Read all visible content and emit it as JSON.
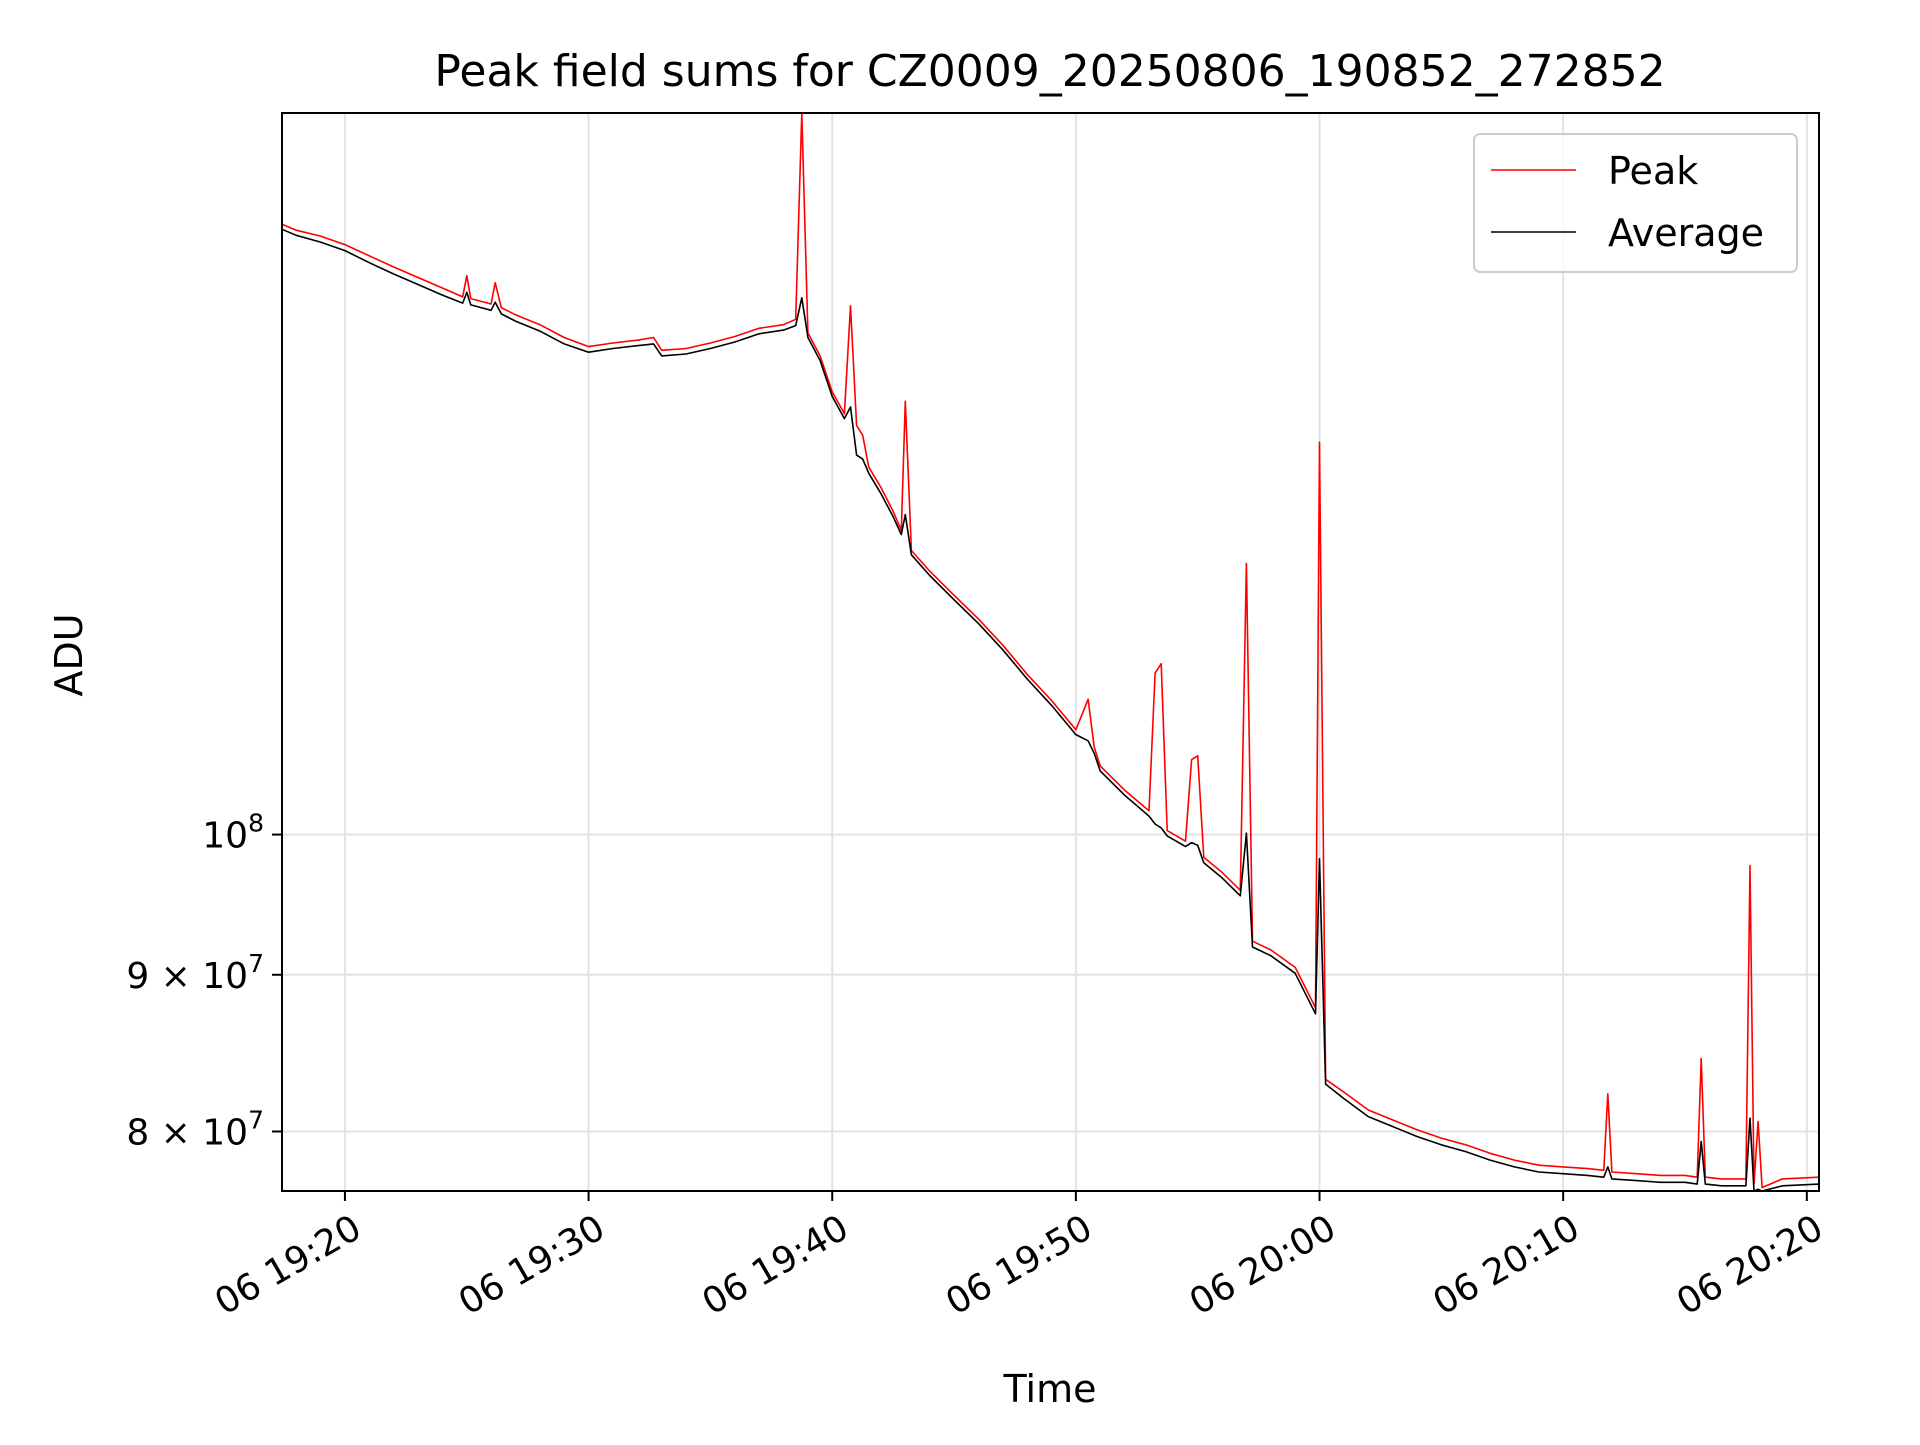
{
  "chart_data": {
    "type": "line",
    "title": "Peak field sums for CZ0009_20250806_190852_272852",
    "xlabel": "Time",
    "ylabel": "ADU",
    "y_scale": "log",
    "grid": true,
    "legend_position": "upper right",
    "xlim": [
      "2025-08-06 19:17:25",
      "2025-08-06 20:20:30"
    ],
    "ylim": [
      76500000.0,
      172000000.0
    ],
    "x_ticks": [
      {
        "time": "2025-08-06 19:20:00",
        "label": "06 19:20"
      },
      {
        "time": "2025-08-06 19:30:00",
        "label": "06 19:30"
      },
      {
        "time": "2025-08-06 19:40:00",
        "label": "06 19:40"
      },
      {
        "time": "2025-08-06 19:50:00",
        "label": "06 19:50"
      },
      {
        "time": "2025-08-06 20:00:00",
        "label": "06 20:00"
      },
      {
        "time": "2025-08-06 20:10:00",
        "label": "06 20:10"
      },
      {
        "time": "2025-08-06 20:20:00",
        "label": "06 20:20"
      }
    ],
    "y_ticks": [
      {
        "value": 80000000.0,
        "mantissa": "8",
        "base": "10",
        "exp": "7"
      },
      {
        "value": 90000000.0,
        "mantissa": "9",
        "base": "10",
        "exp": "7"
      },
      {
        "value": 100000000.0,
        "mantissa": "",
        "base": "10",
        "exp": "8"
      }
    ],
    "series": [
      {
        "name": "Peak",
        "color": "#ff0000",
        "points": [
          [
            "2025-08-06 19:17:25",
            158200000.0
          ],
          [
            "2025-08-06 19:18:00",
            157500000.0
          ],
          [
            "2025-08-06 19:19:00",
            156800000.0
          ],
          [
            "2025-08-06 19:20:00",
            155800000.0
          ],
          [
            "2025-08-06 19:21:00",
            154500000.0
          ],
          [
            "2025-08-06 19:22:00",
            153200000.0
          ],
          [
            "2025-08-06 19:23:00",
            152000000.0
          ],
          [
            "2025-08-06 19:24:00",
            150800000.0
          ],
          [
            "2025-08-06 19:24:50",
            149800000.0
          ],
          [
            "2025-08-06 19:25:00",
            152200000.0
          ],
          [
            "2025-08-06 19:25:10",
            149600000.0
          ],
          [
            "2025-08-06 19:26:00",
            149000000.0
          ],
          [
            "2025-08-06 19:26:10",
            151400000.0
          ],
          [
            "2025-08-06 19:26:25",
            148600000.0
          ],
          [
            "2025-08-06 19:27:00",
            147800000.0
          ],
          [
            "2025-08-06 19:28:00",
            146700000.0
          ],
          [
            "2025-08-06 19:29:00",
            145300000.0
          ],
          [
            "2025-08-06 19:30:00",
            144300000.0
          ],
          [
            "2025-08-06 19:31:00",
            144700000.0
          ],
          [
            "2025-08-06 19:32:00",
            145000000.0
          ],
          [
            "2025-08-06 19:32:40",
            145300000.0
          ],
          [
            "2025-08-06 19:33:00",
            143900000.0
          ],
          [
            "2025-08-06 19:34:00",
            144100000.0
          ],
          [
            "2025-08-06 19:35:00",
            144700000.0
          ],
          [
            "2025-08-06 19:36:00",
            145400000.0
          ],
          [
            "2025-08-06 19:37:00",
            146300000.0
          ],
          [
            "2025-08-06 19:38:00",
            146700000.0
          ],
          [
            "2025-08-06 19:38:30",
            147300000.0
          ],
          [
            "2025-08-06 19:38:45",
            172000000.0
          ],
          [
            "2025-08-06 19:39:00",
            145800000.0
          ],
          [
            "2025-08-06 19:39:30",
            143300000.0
          ],
          [
            "2025-08-06 19:40:00",
            139500000.0
          ],
          [
            "2025-08-06 19:40:30",
            137200000.0
          ],
          [
            "2025-08-06 19:40:45",
            148800000.0
          ],
          [
            "2025-08-06 19:41:00",
            136000000.0
          ],
          [
            "2025-08-06 19:41:15",
            135000000.0
          ],
          [
            "2025-08-06 19:41:30",
            131800000.0
          ],
          [
            "2025-08-06 19:42:00",
            129800000.0
          ],
          [
            "2025-08-06 19:42:30",
            127500000.0
          ],
          [
            "2025-08-06 19:42:50",
            125700000.0
          ],
          [
            "2025-08-06 19:43:00",
            138500000.0
          ],
          [
            "2025-08-06 19:43:15",
            123800000.0
          ],
          [
            "2025-08-06 19:44:00",
            121900000.0
          ],
          [
            "2025-08-06 19:45:00",
            119700000.0
          ],
          [
            "2025-08-06 19:46:00",
            117600000.0
          ],
          [
            "2025-08-06 19:47:00",
            115300000.0
          ],
          [
            "2025-08-06 19:48:00",
            112800000.0
          ],
          [
            "2025-08-06 19:49:00",
            110600000.0
          ],
          [
            "2025-08-06 19:50:00",
            108200000.0
          ],
          [
            "2025-08-06 19:50:30",
            110700000.0
          ],
          [
            "2025-08-06 19:50:45",
            106800000.0
          ],
          [
            "2025-08-06 19:51:00",
            105300000.0
          ],
          [
            "2025-08-06 19:52:00",
            103400000.0
          ],
          [
            "2025-08-06 19:53:00",
            101800000.0
          ],
          [
            "2025-08-06 19:53:15",
            112900000.0
          ],
          [
            "2025-08-06 19:53:30",
            113700000.0
          ],
          [
            "2025-08-06 19:53:45",
            100300000.0
          ],
          [
            "2025-08-06 19:54:30",
            99500000.0
          ],
          [
            "2025-08-06 19:54:45",
            105800000.0
          ],
          [
            "2025-08-06 19:55:00",
            106100000.0
          ],
          [
            "2025-08-06 19:55:15",
            98300000.0
          ],
          [
            "2025-08-06 19:56:00",
            97200000.0
          ],
          [
            "2025-08-06 19:56:45",
            95900000.0
          ],
          [
            "2025-08-06 19:57:00",
            122600000.0
          ],
          [
            "2025-08-06 19:57:15",
            92300000.0
          ],
          [
            "2025-08-06 19:58:00",
            91700000.0
          ],
          [
            "2025-08-06 19:59:00",
            90500000.0
          ],
          [
            "2025-08-06 19:59:50",
            87800000.0
          ],
          [
            "2025-08-06 20:00:00",
            134300000.0
          ],
          [
            "2025-08-06 20:00:15",
            83200000.0
          ],
          [
            "2025-08-06 20:01:00",
            82400000.0
          ],
          [
            "2025-08-06 20:02:00",
            81300000.0
          ],
          [
            "2025-08-06 20:03:00",
            80700000.0
          ],
          [
            "2025-08-06 20:04:00",
            80100000.0
          ],
          [
            "2025-08-06 20:05:00",
            79600000.0
          ],
          [
            "2025-08-06 20:06:00",
            79200000.0
          ],
          [
            "2025-08-06 20:07:00",
            78700000.0
          ],
          [
            "2025-08-06 20:08:00",
            78300000.0
          ],
          [
            "2025-08-06 20:09:00",
            78000000.0
          ],
          [
            "2025-08-06 20:10:00",
            77900000.0
          ],
          [
            "2025-08-06 20:11:00",
            77800000.0
          ],
          [
            "2025-08-06 20:11:40",
            77700000.0
          ],
          [
            "2025-08-06 20:11:50",
            82300000.0
          ],
          [
            "2025-08-06 20:12:00",
            77600000.0
          ],
          [
            "2025-08-06 20:13:00",
            77500000.0
          ],
          [
            "2025-08-06 20:14:00",
            77400000.0
          ],
          [
            "2025-08-06 20:15:00",
            77400000.0
          ],
          [
            "2025-08-06 20:15:30",
            77300000.0
          ],
          [
            "2025-08-06 20:15:40",
            84500000.0
          ],
          [
            "2025-08-06 20:15:50",
            77300000.0
          ],
          [
            "2025-08-06 20:16:30",
            77200000.0
          ],
          [
            "2025-08-06 20:17:00",
            77200000.0
          ],
          [
            "2025-08-06 20:17:30",
            77200000.0
          ],
          [
            "2025-08-06 20:17:40",
            97700000.0
          ],
          [
            "2025-08-06 20:17:50",
            76900000.0
          ],
          [
            "2025-08-06 20:18:00",
            80600000.0
          ],
          [
            "2025-08-06 20:18:10",
            76700000.0
          ],
          [
            "2025-08-06 20:19:00",
            77200000.0
          ],
          [
            "2025-08-06 20:20:30",
            77300000.0
          ]
        ]
      },
      {
        "name": "Average",
        "color": "#000000",
        "points": [
          [
            "2025-08-06 19:17:25",
            157600000.0
          ],
          [
            "2025-08-06 19:18:00",
            156900000.0
          ],
          [
            "2025-08-06 19:19:00",
            156100000.0
          ],
          [
            "2025-08-06 19:20:00",
            155100000.0
          ],
          [
            "2025-08-06 19:21:00",
            153700000.0
          ],
          [
            "2025-08-06 19:22:00",
            152400000.0
          ],
          [
            "2025-08-06 19:23:00",
            151200000.0
          ],
          [
            "2025-08-06 19:24:00",
            150000000.0
          ],
          [
            "2025-08-06 19:24:50",
            149100000.0
          ],
          [
            "2025-08-06 19:25:00",
            150300000.0
          ],
          [
            "2025-08-06 19:25:10",
            148900000.0
          ],
          [
            "2025-08-06 19:26:00",
            148300000.0
          ],
          [
            "2025-08-06 19:26:10",
            149200000.0
          ],
          [
            "2025-08-06 19:26:25",
            147900000.0
          ],
          [
            "2025-08-06 19:27:00",
            147100000.0
          ],
          [
            "2025-08-06 19:28:00",
            146000000.0
          ],
          [
            "2025-08-06 19:29:00",
            144600000.0
          ],
          [
            "2025-08-06 19:30:00",
            143700000.0
          ],
          [
            "2025-08-06 19:31:00",
            144100000.0
          ],
          [
            "2025-08-06 19:32:00",
            144400000.0
          ],
          [
            "2025-08-06 19:32:40",
            144600000.0
          ],
          [
            "2025-08-06 19:33:00",
            143300000.0
          ],
          [
            "2025-08-06 19:34:00",
            143500000.0
          ],
          [
            "2025-08-06 19:35:00",
            144100000.0
          ],
          [
            "2025-08-06 19:36:00",
            144800000.0
          ],
          [
            "2025-08-06 19:37:00",
            145700000.0
          ],
          [
            "2025-08-06 19:38:00",
            146100000.0
          ],
          [
            "2025-08-06 19:38:30",
            146600000.0
          ],
          [
            "2025-08-06 19:38:45",
            149700000.0
          ],
          [
            "2025-08-06 19:39:00",
            145300000.0
          ],
          [
            "2025-08-06 19:39:30",
            142800000.0
          ],
          [
            "2025-08-06 19:40:00",
            139000000.0
          ],
          [
            "2025-08-06 19:40:30",
            136700000.0
          ],
          [
            "2025-08-06 19:40:45",
            137900000.0
          ],
          [
            "2025-08-06 19:41:00",
            133000000.0
          ],
          [
            "2025-08-06 19:41:15",
            132600000.0
          ],
          [
            "2025-08-06 19:41:30",
            131200000.0
          ],
          [
            "2025-08-06 19:42:00",
            129200000.0
          ],
          [
            "2025-08-06 19:42:30",
            127000000.0
          ],
          [
            "2025-08-06 19:42:50",
            125300000.0
          ],
          [
            "2025-08-06 19:43:00",
            127200000.0
          ],
          [
            "2025-08-06 19:43:15",
            123400000.0
          ],
          [
            "2025-08-06 19:44:00",
            121500000.0
          ],
          [
            "2025-08-06 19:45:00",
            119300000.0
          ],
          [
            "2025-08-06 19:46:00",
            117200000.0
          ],
          [
            "2025-08-06 19:47:00",
            114900000.0
          ],
          [
            "2025-08-06 19:48:00",
            112400000.0
          ],
          [
            "2025-08-06 19:49:00",
            110200000.0
          ],
          [
            "2025-08-06 19:50:00",
            107800000.0
          ],
          [
            "2025-08-06 19:50:30",
            107300000.0
          ],
          [
            "2025-08-06 19:50:45",
            106300000.0
          ],
          [
            "2025-08-06 19:51:00",
            104900000.0
          ],
          [
            "2025-08-06 19:52:00",
            103000000.0
          ],
          [
            "2025-08-06 19:53:00",
            101400000.0
          ],
          [
            "2025-08-06 19:53:15",
            100800000.0
          ],
          [
            "2025-08-06 19:53:30",
            100500000.0
          ],
          [
            "2025-08-06 19:53:45",
            99900000.0
          ],
          [
            "2025-08-06 19:54:30",
            99100000.0
          ],
          [
            "2025-08-06 19:54:45",
            99400000.0
          ],
          [
            "2025-08-06 19:55:00",
            99200000.0
          ],
          [
            "2025-08-06 19:55:15",
            97900000.0
          ],
          [
            "2025-08-06 19:56:00",
            96800000.0
          ],
          [
            "2025-08-06 19:56:45",
            95500000.0
          ],
          [
            "2025-08-06 19:57:00",
            100100000.0
          ],
          [
            "2025-08-06 19:57:15",
            91900000.0
          ],
          [
            "2025-08-06 19:58:00",
            91300000.0
          ],
          [
            "2025-08-06 19:59:00",
            90100000.0
          ],
          [
            "2025-08-06 19:59:50",
            87400000.0
          ],
          [
            "2025-08-06 20:00:00",
            98200000.0
          ],
          [
            "2025-08-06 20:00:15",
            82900000.0
          ],
          [
            "2025-08-06 20:01:00",
            82000000.0
          ],
          [
            "2025-08-06 20:02:00",
            80900000.0
          ],
          [
            "2025-08-06 20:03:00",
            80300000.0
          ],
          [
            "2025-08-06 20:04:00",
            79700000.0
          ],
          [
            "2025-08-06 20:05:00",
            79200000.0
          ],
          [
            "2025-08-06 20:06:00",
            78800000.0
          ],
          [
            "2025-08-06 20:07:00",
            78300000.0
          ],
          [
            "2025-08-06 20:08:00",
            77900000.0
          ],
          [
            "2025-08-06 20:09:00",
            77600000.0
          ],
          [
            "2025-08-06 20:10:00",
            77500000.0
          ],
          [
            "2025-08-06 20:11:00",
            77400000.0
          ],
          [
            "2025-08-06 20:11:40",
            77300000.0
          ],
          [
            "2025-08-06 20:11:50",
            77900000.0
          ],
          [
            "2025-08-06 20:12:00",
            77200000.0
          ],
          [
            "2025-08-06 20:13:00",
            77100000.0
          ],
          [
            "2025-08-06 20:14:00",
            77000000.0
          ],
          [
            "2025-08-06 20:15:00",
            77000000.0
          ],
          [
            "2025-08-06 20:15:30",
            76900000.0
          ],
          [
            "2025-08-06 20:15:40",
            79400000.0
          ],
          [
            "2025-08-06 20:15:50",
            76900000.0
          ],
          [
            "2025-08-06 20:16:30",
            76800000.0
          ],
          [
            "2025-08-06 20:17:00",
            76800000.0
          ],
          [
            "2025-08-06 20:17:30",
            76800000.0
          ],
          [
            "2025-08-06 20:17:40",
            80800000.0
          ],
          [
            "2025-08-06 20:17:50",
            76500000.0
          ],
          [
            "2025-08-06 20:18:00",
            76600000.0
          ],
          [
            "2025-08-06 20:18:10",
            76500000.0
          ],
          [
            "2025-08-06 20:19:00",
            76800000.0
          ],
          [
            "2025-08-06 20:20:30",
            76900000.0
          ]
        ]
      }
    ]
  }
}
